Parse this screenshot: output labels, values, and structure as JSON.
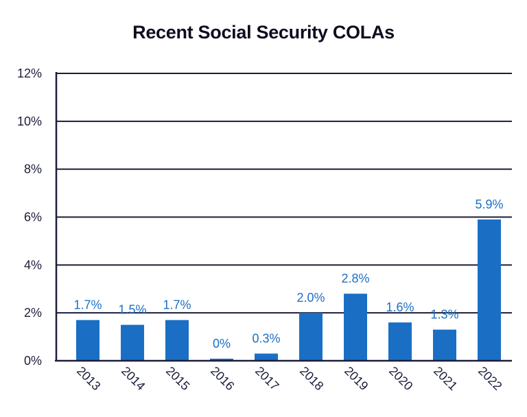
{
  "colors": {
    "bar": "#1a6fc4",
    "data_label": "#1a6fc4",
    "gridline": "#1b1d3a",
    "axis": "#1b1d3a",
    "text": "#1b1d3a"
  },
  "chart_data": {
    "type": "bar",
    "title": "Recent Social Security COLAs",
    "categories": [
      "2013",
      "2014",
      "2015",
      "2016",
      "2017",
      "2018",
      "2019",
      "2020",
      "2021",
      "2022"
    ],
    "values": [
      1.7,
      1.5,
      1.7,
      0,
      0.3,
      2.0,
      2.8,
      1.6,
      1.3,
      5.9
    ],
    "data_labels": [
      "1.7%",
      "1.5%",
      "1.7%",
      "0%",
      "0.3%",
      "2.0%",
      "2.8%",
      "1.6%",
      "1.3%",
      "5.9%"
    ],
    "ylim": [
      0,
      12
    ],
    "yticks": [
      0,
      2,
      4,
      6,
      8,
      10,
      12
    ],
    "ytick_labels": [
      "0%",
      "2%",
      "4%",
      "6%",
      "8%",
      "10%",
      "12%"
    ],
    "grid": true,
    "xlabel": "",
    "ylabel": ""
  }
}
